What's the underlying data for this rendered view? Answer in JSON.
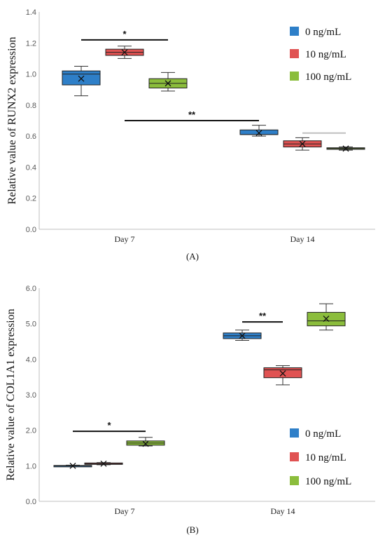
{
  "chart_data": [
    {
      "type": "box",
      "panel_label": "(A)",
      "ylabel": "Relative value of RUNX2 expression",
      "ylim": [
        0,
        1.4
      ],
      "yticks": [
        "0.0",
        "0.2",
        "0.4",
        "0.6",
        "0.8",
        "1.0",
        "1.2",
        "1.4"
      ],
      "categories": [
        "Day 7",
        "Day 14"
      ],
      "legend": {
        "position": "top-right"
      },
      "series": [
        {
          "name": "0 ng/mL",
          "color": "#2e7fc8",
          "boxes": [
            {
              "min": 0.86,
              "q1": 0.93,
              "median": 1.0,
              "q3": 1.02,
              "max": 1.05,
              "mean": 0.97
            },
            {
              "min": 0.6,
              "q1": 0.61,
              "median": 0.61,
              "q3": 0.64,
              "max": 0.67,
              "mean": 0.62
            }
          ]
        },
        {
          "name": "10 ng/mL",
          "color": "#e05252",
          "boxes": [
            {
              "min": 1.1,
              "q1": 1.12,
              "median": 1.14,
              "q3": 1.16,
              "max": 1.18,
              "mean": 1.14
            },
            {
              "min": 0.51,
              "q1": 0.53,
              "median": 0.55,
              "q3": 0.57,
              "max": 0.59,
              "mean": 0.55
            }
          ]
        },
        {
          "name": "100 ng/mL",
          "color": "#8bbd3c",
          "boxes": [
            {
              "min": 0.89,
              "q1": 0.91,
              "median": 0.94,
              "q3": 0.97,
              "max": 1.01,
              "mean": 0.94
            },
            {
              "min": 0.51,
              "q1": 0.515,
              "median": 0.52,
              "q3": 0.525,
              "max": 0.53,
              "mean": 0.52
            }
          ]
        }
      ],
      "annotations": [
        {
          "text": "*",
          "from": [
            0,
            0
          ],
          "to": [
            0,
            2
          ],
          "y": 1.22,
          "color": "#111111"
        },
        {
          "text": "**",
          "from": [
            0,
            1
          ],
          "to": [
            1,
            0
          ],
          "y": 0.7,
          "color": "#111111"
        },
        {
          "text": "",
          "from": [
            1,
            1
          ],
          "to": [
            1,
            2
          ],
          "y": 0.62,
          "color": "#bfbfbf"
        }
      ]
    },
    {
      "type": "box",
      "panel_label": "(B)",
      "ylabel": "Relative value of COL1A1 expression",
      "ylim": [
        0,
        6.0
      ],
      "yticks": [
        "0.0",
        "1.0",
        "2.0",
        "3.0",
        "4.0",
        "5.0",
        "6.0"
      ],
      "categories": [
        "Day 7",
        "Day 14"
      ],
      "legend": {
        "position": "bottom-right"
      },
      "series": [
        {
          "name": "0 ng/mL",
          "color": "#2e7fc8",
          "boxes": [
            {
              "min": 0.98,
              "q1": 0.99,
              "median": 1.0,
              "q3": 1.01,
              "max": 1.02,
              "mean": 1.0
            },
            {
              "min": 4.53,
              "q1": 4.58,
              "median": 4.66,
              "q3": 4.74,
              "max": 4.82,
              "mean": 4.66
            }
          ]
        },
        {
          "name": "10 ng/mL",
          "color": "#e05252",
          "boxes": [
            {
              "min": 1.03,
              "q1": 1.04,
              "median": 1.06,
              "q3": 1.08,
              "max": 1.09,
              "mean": 1.06
            },
            {
              "min": 3.28,
              "q1": 3.48,
              "median": 3.7,
              "q3": 3.76,
              "max": 3.82,
              "mean": 3.6
            }
          ]
        },
        {
          "name": "100 ng/mL",
          "color": "#8bbd3c",
          "boxes": [
            {
              "min": 1.56,
              "q1": 1.58,
              "median": 1.64,
              "q3": 1.7,
              "max": 1.8,
              "mean": 1.62
            },
            {
              "min": 4.82,
              "q1": 4.94,
              "median": 5.08,
              "q3": 5.32,
              "max": 5.56,
              "mean": 5.14
            }
          ]
        }
      ],
      "annotations": [
        {
          "text": "*",
          "from": [
            0,
            0
          ],
          "to": [
            0,
            2
          ],
          "y": 1.97,
          "color": "#111111"
        },
        {
          "text": "**",
          "from": [
            1,
            0
          ],
          "to": [
            1,
            1
          ],
          "y": 5.05,
          "color": "#111111"
        }
      ]
    }
  ]
}
